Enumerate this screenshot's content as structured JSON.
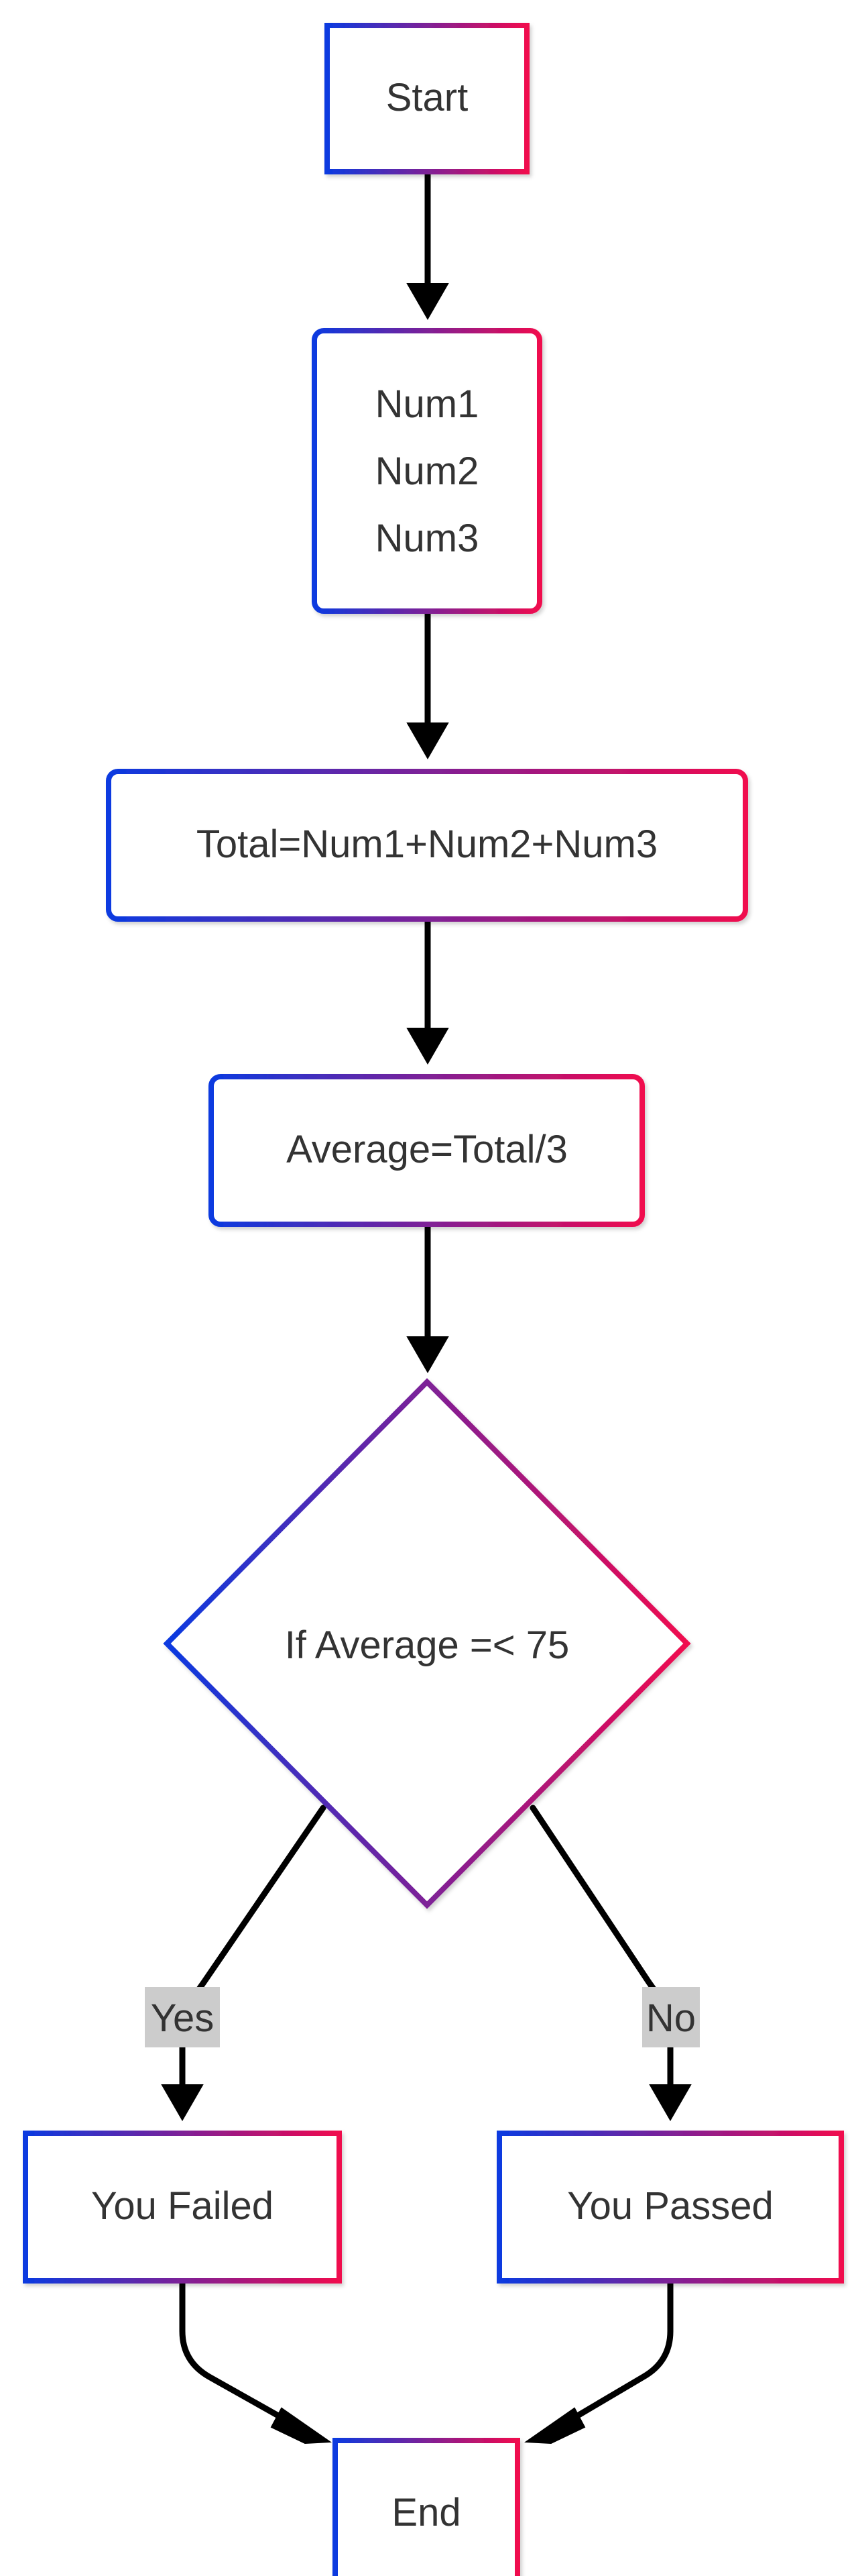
{
  "colors": {
    "border_gradient_start": "#0b3ae0",
    "border_gradient_end": "#f0084e",
    "edge": "#000000",
    "text": "#333333",
    "edge_label_background": "#cccccc",
    "background": "#ffffff"
  },
  "nodes": {
    "start": {
      "label": "Start"
    },
    "inputs": {
      "lines": [
        "Num1",
        "Num2",
        "Num3"
      ]
    },
    "total": {
      "label": "Total=Num1+Num2+Num3"
    },
    "average": {
      "label": "Average=Total/3"
    },
    "decision": {
      "label": "If Average =< 75"
    },
    "failed": {
      "label": "You Failed"
    },
    "passed": {
      "label": "You Passed"
    },
    "end": {
      "label": "End"
    }
  },
  "edges": {
    "yes_label": "Yes",
    "no_label": "No"
  }
}
